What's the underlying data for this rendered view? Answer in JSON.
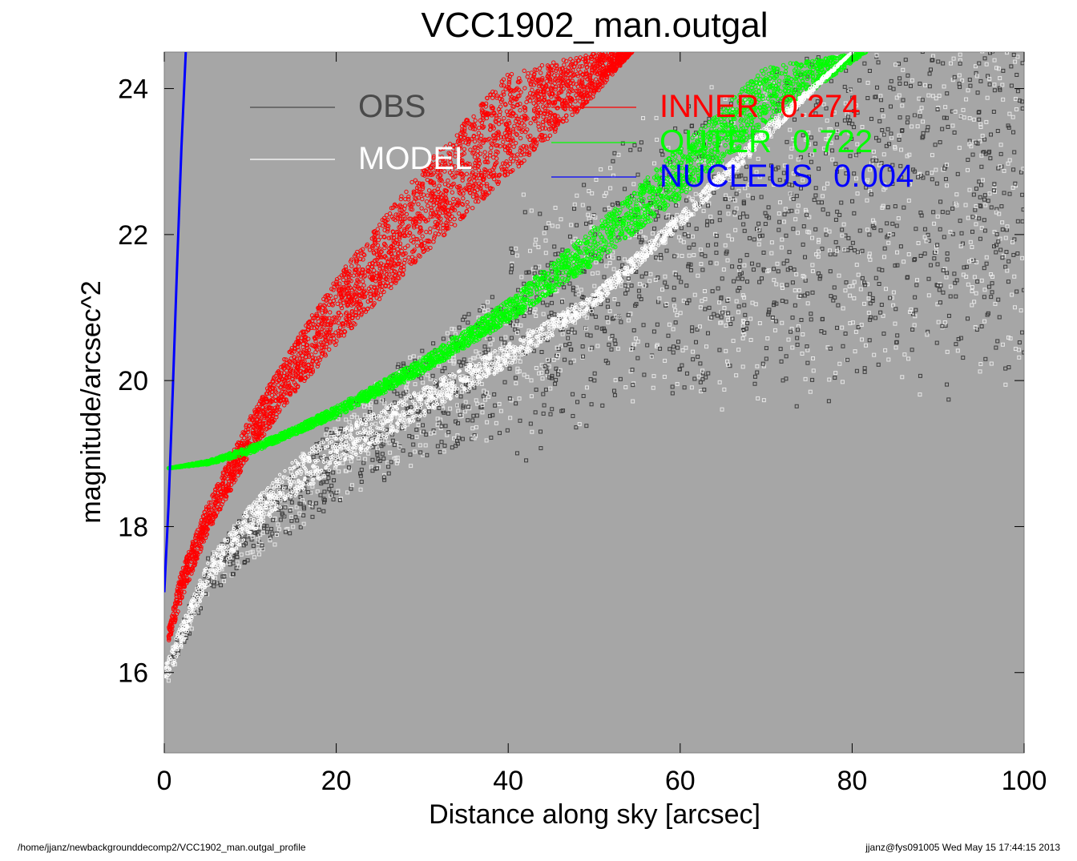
{
  "chart_data": {
    "type": "scatter",
    "title": "VCC1902_man.outgal",
    "xlabel": "Distance along sky [arcsec]",
    "ylabel": "magnitude/arcsec^2",
    "xlim": [
      0,
      100
    ],
    "ylim": [
      24.5,
      14.9
    ],
    "y_inverted": true,
    "x_ticks": [
      "0",
      "20",
      "40",
      "60",
      "80",
      "100"
    ],
    "x_tick_values": [
      0,
      20,
      40,
      60,
      80,
      100
    ],
    "y_ticks": [
      "16",
      "18",
      "20",
      "22",
      "24"
    ],
    "y_tick_values": [
      16,
      18,
      20,
      22,
      24
    ],
    "background_color": "#a6a6a6",
    "grid": false,
    "legend": [
      {
        "label": "OBS",
        "value": "",
        "color": "#4a4a4a"
      },
      {
        "label": "MODEL",
        "value": "",
        "color": "#ffffff"
      },
      {
        "label": "INNER",
        "value": "0.274",
        "color": "#ff0000"
      },
      {
        "label": "OUTER",
        "value": "0.722",
        "color": "#00ff00"
      },
      {
        "label": "NUCLEUS",
        "value": "0.004",
        "color": "#0000ff"
      }
    ],
    "series": [
      {
        "name": "OBS",
        "color": "#4a4a4a",
        "trend": {
          "x": [
            0,
            5,
            10,
            15,
            20,
            30,
            40,
            50,
            60,
            70,
            80,
            90,
            100
          ],
          "y": [
            15.9,
            17.3,
            17.9,
            18.4,
            18.9,
            19.7,
            20.3,
            20.9,
            21.4,
            21.7,
            22.0,
            22.3,
            22.5
          ]
        },
        "scatter_range": {
          "x": [
            0,
            100
          ],
          "y": [
            15.8,
            24.5
          ]
        }
      },
      {
        "name": "MODEL",
        "color": "#ffffff",
        "x": [
          0,
          5,
          10,
          15,
          20,
          30,
          40,
          50,
          60,
          70,
          80
        ],
        "y_upper": [
          15.8,
          17.2,
          17.9,
          18.4,
          18.8,
          19.5,
          20.2,
          21.0,
          22.1,
          23.3,
          24.5
        ],
        "y_lower": [
          16.1,
          17.5,
          18.3,
          18.9,
          19.3,
          19.9,
          20.5,
          21.2,
          22.3,
          23.5,
          24.5
        ]
      },
      {
        "name": "INNER",
        "color": "#ff0000",
        "x": [
          0.5,
          2,
          5,
          10,
          15,
          20,
          30,
          40,
          50,
          54.4
        ],
        "y_upper": [
          16.4,
          17.0,
          17.9,
          19.0,
          19.8,
          20.5,
          21.7,
          22.8,
          23.9,
          24.5
        ],
        "y_lower": [
          16.6,
          17.4,
          18.3,
          19.5,
          20.5,
          21.4,
          22.9,
          24.2,
          24.5,
          24.5
        ]
      },
      {
        "name": "OUTER",
        "color": "#00ff00",
        "x": [
          0.5,
          5,
          10,
          15,
          20,
          30,
          40,
          50,
          60,
          70,
          81.6
        ],
        "y_upper": [
          18.8,
          18.85,
          19.0,
          19.25,
          19.5,
          20.1,
          20.8,
          21.6,
          22.5,
          23.5,
          24.5
        ],
        "y_lower": [
          18.8,
          18.9,
          19.1,
          19.35,
          19.65,
          20.3,
          21.1,
          22.1,
          23.2,
          24.3,
          24.5
        ]
      },
      {
        "name": "NUCLEUS",
        "color": "#0000ff",
        "x": [
          0.0,
          0.5,
          1.0,
          1.5,
          2.0,
          2.5
        ],
        "y": [
          17.1,
          18.3,
          19.9,
          21.6,
          23.2,
          24.5
        ]
      }
    ]
  },
  "footer": {
    "left": "/home/jjanz/newbackgrounddecomp2/VCC1902_man.outgal_profile",
    "right": "jjanz@fys091005  Wed May 15 17:44:15 2013"
  }
}
